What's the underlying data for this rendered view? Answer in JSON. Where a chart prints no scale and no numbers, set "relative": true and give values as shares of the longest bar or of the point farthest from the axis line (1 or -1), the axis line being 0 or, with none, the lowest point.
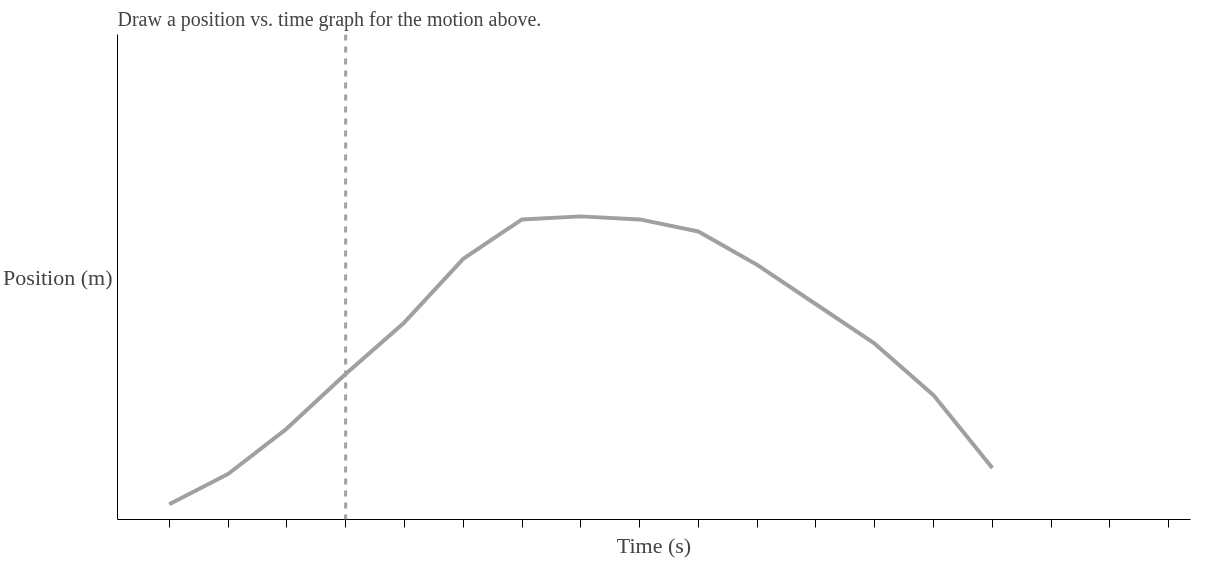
{
  "chart_data": {
    "type": "line",
    "title": "Draw a position vs. time graph for the motion above.",
    "xlabel": "Time (s)",
    "ylabel": "Position (m)",
    "relative": true,
    "categories": [
      null,
      null,
      null,
      null,
      null,
      null,
      null,
      null,
      null,
      null,
      null,
      null,
      null,
      null,
      null,
      null,
      null,
      null
    ],
    "series": [
      {
        "color": "#a0a0a0",
        "values": [
          0.05,
          0.15,
          0.3,
          0.48,
          0.65,
          0.86,
          0.99,
          1.0,
          0.99,
          0.95,
          0.84,
          0.71,
          0.58,
          0.41,
          0.17,
          null,
          null,
          null
        ]
      }
    ],
    "line_style": "solid"
  }
}
